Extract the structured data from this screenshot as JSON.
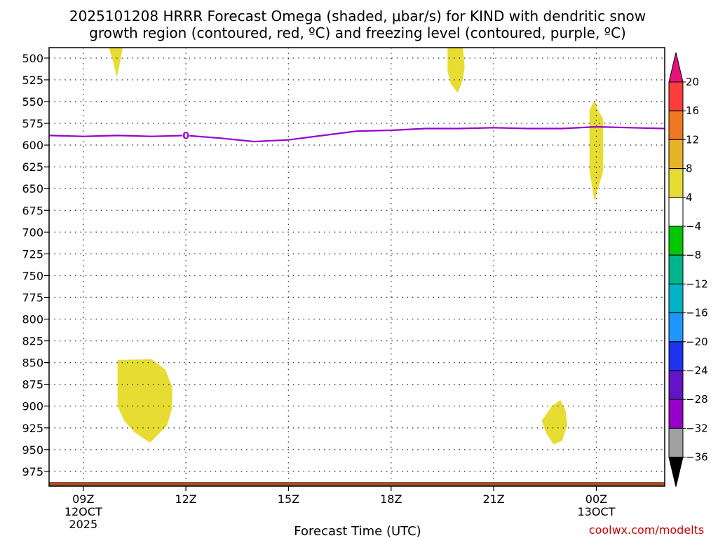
{
  "title_line1": "2025101208 HRRR Forecast Omega (shaded, μbar/s) for KIND with dendritic snow",
  "title_line2": "growth region (contoured, red, ºC) and freezing level (contoured, purple, ºC)",
  "credit": "coolwx.com/modelts",
  "colors": {
    "omega_positive_fill": "#e6dc32",
    "freezing_level": "#9900cc",
    "ground": "#a0522d",
    "grid": "#333333"
  },
  "chart_data": {
    "type": "area",
    "x_units": "hours since 09Z 12OCT 2025",
    "y_units": "hPa",
    "xlabel": "Forecast Time (UTC)",
    "ylim": [
      488,
      992
    ],
    "xlim": [
      -1,
      17
    ],
    "x_ticks": [
      {
        "x": 0,
        "line1": "09Z",
        "line2": "12OCT",
        "line3": "2025"
      },
      {
        "x": 3,
        "line1": "12Z",
        "line2": "",
        "line3": ""
      },
      {
        "x": 6,
        "line1": "15Z",
        "line2": "",
        "line3": ""
      },
      {
        "x": 9,
        "line1": "18Z",
        "line2": "",
        "line3": ""
      },
      {
        "x": 12,
        "line1": "21Z",
        "line2": "",
        "line3": ""
      },
      {
        "x": 15,
        "line1": "00Z",
        "line2": "13OCT",
        "line3": ""
      }
    ],
    "y_ticks": [
      500,
      525,
      550,
      575,
      600,
      625,
      650,
      675,
      700,
      725,
      750,
      775,
      800,
      825,
      850,
      875,
      900,
      925,
      950,
      975
    ],
    "freezing_level": {
      "label": "0",
      "label_x": 3,
      "x": [
        -1,
        0,
        1,
        2,
        3,
        4,
        5,
        6,
        7,
        8,
        9,
        10,
        11,
        12,
        13,
        14,
        15,
        16,
        17
      ],
      "p": [
        589,
        590,
        589,
        590,
        589,
        592,
        596,
        594,
        589,
        584,
        583,
        581,
        581,
        580,
        581,
        581,
        579,
        580,
        581
      ]
    },
    "omega_regions": [
      {
        "level": "4 to 8",
        "points": [
          [
            0.75,
            488
          ],
          [
            1.15,
            488
          ],
          [
            1.05,
            510
          ],
          [
            0.98,
            522
          ],
          [
            0.88,
            505
          ]
        ]
      },
      {
        "level": "4 to 8",
        "points": [
          [
            10.65,
            488
          ],
          [
            11.1,
            488
          ],
          [
            11.15,
            510
          ],
          [
            11.1,
            525
          ],
          [
            10.95,
            540
          ],
          [
            10.75,
            530
          ],
          [
            10.65,
            515
          ]
        ]
      },
      {
        "level": "4 to 8",
        "points": [
          [
            14.8,
            560
          ],
          [
            14.95,
            548
          ],
          [
            15.05,
            560
          ],
          [
            15.2,
            570
          ],
          [
            15.2,
            630
          ],
          [
            15.05,
            650
          ],
          [
            14.95,
            665
          ],
          [
            14.8,
            630
          ]
        ]
      },
      {
        "level": "4 to 8",
        "points": [
          [
            1.0,
            847
          ],
          [
            2.0,
            846
          ],
          [
            2.4,
            858
          ],
          [
            2.6,
            878
          ],
          [
            2.6,
            902
          ],
          [
            2.45,
            922
          ],
          [
            1.95,
            942
          ],
          [
            1.5,
            930
          ],
          [
            1.2,
            917
          ],
          [
            1.0,
            900
          ]
        ]
      },
      {
        "level": "4 to 8",
        "points": [
          [
            13.4,
            917
          ],
          [
            13.7,
            900
          ],
          [
            13.95,
            893
          ],
          [
            14.1,
            905
          ],
          [
            14.15,
            922
          ],
          [
            14.0,
            940
          ],
          [
            13.75,
            944
          ],
          [
            13.55,
            932
          ]
        ]
      }
    ],
    "colorbar": {
      "labels": [
        "20",
        "16",
        "12",
        "8",
        "4",
        "−4",
        "−8",
        "−12",
        "−16",
        "−20",
        "−24",
        "−28",
        "−32",
        "−36"
      ],
      "colors": [
        "#ff3c3c",
        "#f07820",
        "#e6b428",
        "#e6dc32",
        "#ffffff",
        "#00c800",
        "#00b48c",
        "#00b4c8",
        "#1e96ff",
        "#1e32f0",
        "#6414c8",
        "#9600c8",
        "#a0a0a0"
      ],
      "top_arrow_color": "#e6147a",
      "bottom_arrow_color": "#000000"
    }
  }
}
